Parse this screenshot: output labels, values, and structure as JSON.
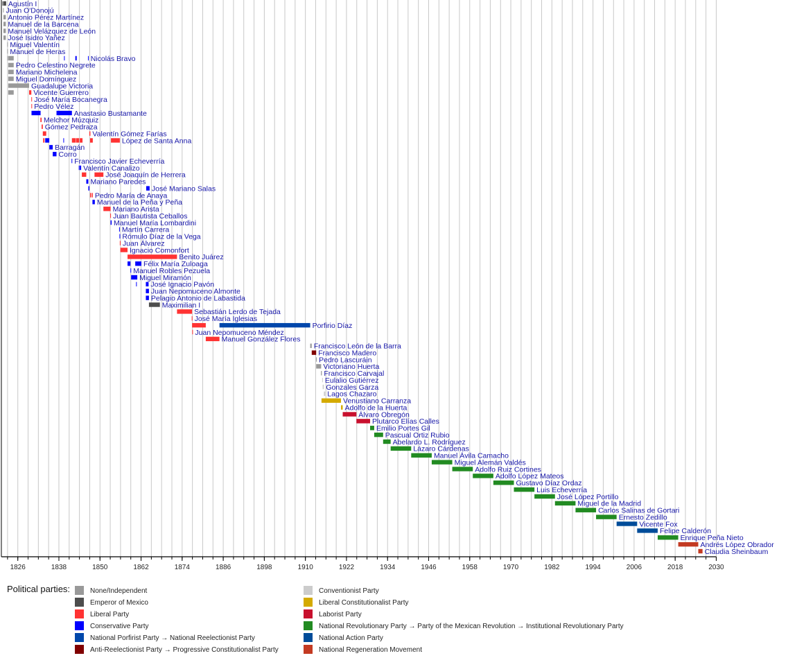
{
  "chart_data": {
    "type": "timeline",
    "xlim": [
      1821.2,
      2030
    ],
    "x_ticks": [
      1826,
      1838,
      1850,
      1862,
      1874,
      1886,
      1898,
      1910,
      1922,
      1934,
      1946,
      1958,
      1970,
      1982,
      1994,
      2006,
      2018,
      2030
    ],
    "grid": true,
    "legend_title": "Political parties:",
    "legend_position": "bottom",
    "parties": [
      {
        "key": "none",
        "name": "None/Independent",
        "color": "#999999"
      },
      {
        "key": "emp",
        "name": "Emperor of Mexico",
        "color": "#4d4d4d"
      },
      {
        "key": "lib",
        "name": "Liberal Party",
        "color": "#ff3333"
      },
      {
        "key": "con",
        "name": "Conservative Party",
        "color": "#0000ff"
      },
      {
        "key": "porf",
        "name": "National Porfirist Party → National Reelectionist Party",
        "color": "#0047ab"
      },
      {
        "key": "anti",
        "name": "Anti-Reelectionist Party → Progressive Constitutionalist Party",
        "color": "#800000"
      },
      {
        "key": "conv",
        "name": "Conventionist Party",
        "color": "#cccccc"
      },
      {
        "key": "plc",
        "name": "Liberal Constitutionalist Party",
        "color": "#d4aa00"
      },
      {
        "key": "lab",
        "name": "Laborist Party",
        "color": "#c8102e"
      },
      {
        "key": "pri",
        "name": "National Revolutionary Party → Party of the Mexican Revolution → Institutional Revolutionary Party",
        "color": "#228b22"
      },
      {
        "key": "pan",
        "name": "National Action Party",
        "color": "#004c99"
      },
      {
        "key": "mor",
        "name": "National Regeneration Movement",
        "color": "#c33a22"
      }
    ],
    "rows": [
      {
        "name": "Agustín I",
        "terms": [
          [
            1821.4,
            1821.8,
            "none"
          ],
          [
            1821.8,
            1822.6,
            "emp"
          ]
        ]
      },
      {
        "name": "Juan O'Donojú",
        "terms": [
          [
            1821.7,
            1821.9,
            "none"
          ]
        ]
      },
      {
        "name": "Antonio Pérez Martínez",
        "terms": [
          [
            1821.8,
            1822.5,
            "none"
          ]
        ]
      },
      {
        "name": "Manuel de la Barcena",
        "terms": [
          [
            1821.8,
            1822.5,
            "none"
          ]
        ]
      },
      {
        "name": "Manuel Velázquez de León",
        "terms": [
          [
            1821.8,
            1822.5,
            "none"
          ]
        ]
      },
      {
        "name": "José Isidro Yañez",
        "terms": [
          [
            1821.8,
            1822.5,
            "none"
          ]
        ]
      },
      {
        "name": "Miguel Valentín",
        "terms": [
          [
            1822.9,
            1823.05,
            "none"
          ]
        ]
      },
      {
        "name": "Manuel de Heras",
        "terms": [
          [
            1822.9,
            1823.05,
            "none"
          ]
        ]
      },
      {
        "name": "Nicolás Bravo",
        "terms": [
          [
            1822.9,
            1823.05,
            "none"
          ],
          [
            1823.2,
            1824.8,
            "none"
          ],
          [
            1839.5,
            1839.6,
            "con"
          ],
          [
            1842.8,
            1843.2,
            "con"
          ],
          [
            1846.5,
            1846.65,
            "con"
          ]
        ]
      },
      {
        "name": "Pedro Celestino Negrete",
        "terms": [
          [
            1823.2,
            1824.8,
            "none"
          ]
        ]
      },
      {
        "name": "Mariano Michelena",
        "terms": [
          [
            1823.2,
            1824.8,
            "none"
          ]
        ]
      },
      {
        "name": "Miguel Domínguez",
        "terms": [
          [
            1823.2,
            1824.8,
            "none"
          ]
        ]
      },
      {
        "name": "Guadalupe Victoria",
        "terms": [
          [
            1823.2,
            1829.3,
            "none"
          ]
        ]
      },
      {
        "name": "Vicente Guerrero",
        "terms": [
          [
            1823.2,
            1824.8,
            "none"
          ],
          [
            1829.3,
            1829.95,
            "lib"
          ]
        ]
      },
      {
        "name": "José María Bocanegra",
        "terms": [
          [
            1829.95,
            1830.05,
            "lib"
          ]
        ]
      },
      {
        "name": "Pedro Vélez",
        "terms": [
          [
            1829.97,
            1830.07,
            "lib"
          ]
        ]
      },
      {
        "name": "Anastasio Bustamante",
        "terms": [
          [
            1830.0,
            1832.65,
            "con"
          ],
          [
            1837.3,
            1841.8,
            "con"
          ]
        ]
      },
      {
        "name": "Melchor Múzquiz",
        "terms": [
          [
            1832.6,
            1832.95,
            "lib"
          ]
        ]
      },
      {
        "name": "Gómez Pedraza",
        "terms": [
          [
            1832.95,
            1833.3,
            "lib"
          ]
        ]
      },
      {
        "name": "Valentín Gómez Farías",
        "terms": [
          [
            1833.3,
            1834.3,
            "lib"
          ],
          [
            1846.9,
            1847.2,
            "lib"
          ]
        ]
      },
      {
        "name": "López de Santa Anna",
        "terms": [
          [
            1833.4,
            1833.8,
            "lib"
          ],
          [
            1834.0,
            1835.2,
            "con"
          ],
          [
            1839.3,
            1839.5,
            "con"
          ],
          [
            1841.8,
            1842.9,
            "lib"
          ],
          [
            1843.0,
            1843.9,
            "lib"
          ],
          [
            1844.1,
            1844.9,
            "lib"
          ],
          [
            1847.1,
            1847.9,
            "lib"
          ],
          [
            1853.2,
            1855.8,
            "lib"
          ]
        ]
      },
      {
        "name": "Barragán",
        "terms": [
          [
            1835.2,
            1836.2,
            "con"
          ]
        ]
      },
      {
        "name": "Corro",
        "terms": [
          [
            1836.2,
            1837.3,
            "con"
          ]
        ]
      },
      {
        "name": "Francisco Javier Echeverría",
        "terms": [
          [
            1841.7,
            1841.85,
            "con"
          ]
        ]
      },
      {
        "name": "Valentín Canalizo",
        "terms": [
          [
            1843.8,
            1844.0,
            "con"
          ],
          [
            1844.1,
            1844.5,
            "con"
          ]
        ]
      },
      {
        "name": "José Joaquín de Herrera",
        "terms": [
          [
            1844.7,
            1846.0,
            "lib"
          ],
          [
            1848.4,
            1851.0,
            "lib"
          ]
        ]
      },
      {
        "name": "Mariano Paredes",
        "terms": [
          [
            1846.0,
            1846.6,
            "con"
          ]
        ]
      },
      {
        "name": "José Mariano Salas",
        "terms": [
          [
            1846.6,
            1846.9,
            "con"
          ],
          [
            1863.5,
            1864.5,
            "con"
          ]
        ]
      },
      {
        "name": "Pedro María de Anaya",
        "terms": [
          [
            1847.1,
            1847.4,
            "lib"
          ],
          [
            1847.6,
            1847.9,
            "lib"
          ]
        ]
      },
      {
        "name": "Manuel de la Peña y Peña",
        "terms": [
          [
            1847.8,
            1848.5,
            "con"
          ]
        ]
      },
      {
        "name": "Mariano Arista",
        "terms": [
          [
            1851.0,
            1853.1,
            "lib"
          ]
        ]
      },
      {
        "name": "Juan Bautista Ceballos",
        "terms": [
          [
            1853.0,
            1853.15,
            "lib"
          ]
        ]
      },
      {
        "name": "Manuel María Lombardini",
        "terms": [
          [
            1853.1,
            1853.4,
            "con"
          ]
        ]
      },
      {
        "name": "Martín Carrera",
        "terms": [
          [
            1855.6,
            1855.75,
            "con"
          ]
        ]
      },
      {
        "name": "Rómulo Díaz de la Vega",
        "terms": [
          [
            1855.7,
            1855.85,
            "con"
          ]
        ]
      },
      {
        "name": "Juan Álvarez",
        "terms": [
          [
            1855.8,
            1856.0,
            "lib"
          ]
        ]
      },
      {
        "name": "Ignacio Comonfort",
        "terms": [
          [
            1855.95,
            1858.05,
            "lib"
          ]
        ]
      },
      {
        "name": "Benito Juárez",
        "terms": [
          [
            1858.05,
            1872.5,
            "lib"
          ]
        ]
      },
      {
        "name": "Félix María Zuloaga",
        "terms": [
          [
            1858.05,
            1858.9,
            "con"
          ],
          [
            1860.3,
            1862.1,
            "con"
          ]
        ]
      },
      {
        "name": "Manuel Robles Pezuela",
        "terms": [
          [
            1858.9,
            1859.1,
            "con"
          ]
        ]
      },
      {
        "name": "Miguel Miramón",
        "terms": [
          [
            1859.1,
            1860.9,
            "con"
          ]
        ]
      },
      {
        "name": "José Ignacio Pavón",
        "terms": [
          [
            1860.55,
            1860.7,
            "con"
          ],
          [
            1863.4,
            1864.2,
            "con"
          ]
        ]
      },
      {
        "name": "Juan Nepomuceno Almonte",
        "terms": [
          [
            1863.4,
            1864.3,
            "con"
          ]
        ]
      },
      {
        "name": "Pelagio Antonio de Labastida",
        "terms": [
          [
            1863.4,
            1864.3,
            "con"
          ]
        ]
      },
      {
        "name": "Maximilian I",
        "terms": [
          [
            1864.3,
            1867.5,
            "emp"
          ]
        ]
      },
      {
        "name": "Sebastián Lerdo de Tejada",
        "terms": [
          [
            1872.5,
            1876.9,
            "lib"
          ]
        ]
      },
      {
        "name": "José María Iglesias",
        "terms": [
          [
            1876.8,
            1877.0,
            "lib"
          ]
        ]
      },
      {
        "name": "Porfirio Díaz",
        "terms": [
          [
            1876.9,
            1880.9,
            "lib"
          ],
          [
            1884.9,
            1911.4,
            "porf"
          ]
        ]
      },
      {
        "name": "Juan Nepomuceno Méndez",
        "terms": [
          [
            1876.95,
            1877.15,
            "lib"
          ]
        ]
      },
      {
        "name": "Manuel González Flores",
        "terms": [
          [
            1880.9,
            1884.9,
            "lib"
          ]
        ]
      },
      {
        "name": "Francisco León de la Barra",
        "terms": [
          [
            1911.4,
            1911.85,
            "none"
          ]
        ]
      },
      {
        "name": "Francisco Madero",
        "terms": [
          [
            1911.85,
            1913.15,
            "anti"
          ]
        ]
      },
      {
        "name": "Pedro Lascuráin",
        "terms": [
          [
            1913.13,
            1913.2,
            "none"
          ]
        ]
      },
      {
        "name": "Victoriano Huerta",
        "terms": [
          [
            1913.15,
            1914.6,
            "none"
          ]
        ]
      },
      {
        "name": "Francisco Carvajal",
        "terms": [
          [
            1914.55,
            1914.8,
            "none"
          ]
        ]
      },
      {
        "name": "Eulalio Gutiérrez",
        "terms": [
          [
            1914.9,
            1915.05,
            "conv"
          ]
        ]
      },
      {
        "name": "Gonzales Garza",
        "terms": [
          [
            1915.05,
            1915.4,
            "conv"
          ]
        ]
      },
      {
        "name": "Lagos Chazaro",
        "terms": [
          [
            1915.4,
            1915.8,
            "conv"
          ]
        ]
      },
      {
        "name": "Venustiano Carranza",
        "terms": [
          [
            1914.7,
            1920.4,
            "plc"
          ]
        ]
      },
      {
        "name": "Adolfo de la Huerta",
        "terms": [
          [
            1920.4,
            1920.9,
            "plc"
          ]
        ]
      },
      {
        "name": "Álvaro Obregón",
        "terms": [
          [
            1920.9,
            1924.9,
            "lab"
          ]
        ]
      },
      {
        "name": "Plutarco Elías Calles",
        "terms": [
          [
            1924.9,
            1928.9,
            "lab"
          ]
        ]
      },
      {
        "name": "Emilio Portes Gil",
        "terms": [
          [
            1928.9,
            1930.1,
            "pri"
          ]
        ]
      },
      {
        "name": "Pascual Ortiz Rubio",
        "terms": [
          [
            1930.1,
            1932.7,
            "pri"
          ]
        ]
      },
      {
        "name": "Abelardo L. Rodríguez",
        "terms": [
          [
            1932.7,
            1934.9,
            "pri"
          ]
        ]
      },
      {
        "name": "Lázaro Cárdenas",
        "terms": [
          [
            1934.9,
            1940.9,
            "pri"
          ]
        ]
      },
      {
        "name": "Manuel Ávila Camacho",
        "terms": [
          [
            1940.9,
            1946.9,
            "pri"
          ]
        ]
      },
      {
        "name": "Miguel Alemán Valdés",
        "terms": [
          [
            1946.9,
            1952.9,
            "pri"
          ]
        ]
      },
      {
        "name": "Adolfo Ruiz Cortines",
        "terms": [
          [
            1952.9,
            1958.9,
            "pri"
          ]
        ]
      },
      {
        "name": "Adolfo López Mateos",
        "terms": [
          [
            1958.9,
            1964.9,
            "pri"
          ]
        ]
      },
      {
        "name": "Gustavo Díaz Ordaz",
        "terms": [
          [
            1964.9,
            1970.9,
            "pri"
          ]
        ]
      },
      {
        "name": "Luis Echeverría",
        "terms": [
          [
            1970.9,
            1976.9,
            "pri"
          ]
        ]
      },
      {
        "name": "José López Portillo",
        "terms": [
          [
            1976.9,
            1982.9,
            "pri"
          ]
        ]
      },
      {
        "name": "Miguel de la Madrid",
        "terms": [
          [
            1982.9,
            1988.9,
            "pri"
          ]
        ]
      },
      {
        "name": "Carlos Salinas de Gortari",
        "terms": [
          [
            1988.9,
            1994.9,
            "pri"
          ]
        ]
      },
      {
        "name": "Ernesto Zedillo",
        "terms": [
          [
            1994.9,
            2000.9,
            "pri"
          ]
        ]
      },
      {
        "name": "Vicente Fox",
        "terms": [
          [
            2000.9,
            2006.9,
            "pan"
          ]
        ]
      },
      {
        "name": "Felipe Calderón",
        "terms": [
          [
            2006.9,
            2012.9,
            "pan"
          ]
        ]
      },
      {
        "name": "Enrique Peña Nieto",
        "terms": [
          [
            2012.9,
            2018.9,
            "pri"
          ]
        ]
      },
      {
        "name": "Andrés López Obrador",
        "terms": [
          [
            2018.9,
            2024.75,
            "mor"
          ]
        ]
      },
      {
        "name": "Claudia Sheinbaum",
        "terms": [
          [
            2024.75,
            2026.0,
            "mor"
          ]
        ]
      }
    ]
  }
}
